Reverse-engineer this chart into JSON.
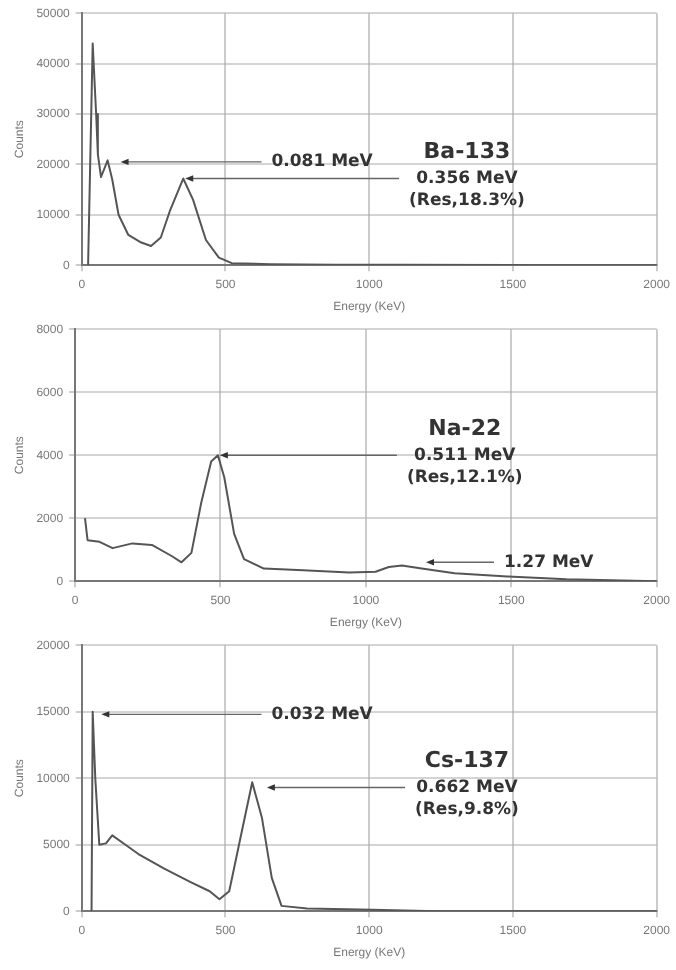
{
  "chart_data": [
    {
      "type": "line",
      "xlabel": "Energy (KeV)",
      "ylabel": "Counts",
      "marker": "none",
      "grid": true,
      "color": "#555555",
      "x": [
        22,
        38,
        50,
        56,
        67,
        90,
        106,
        128,
        162,
        207,
        241,
        275,
        308,
        353,
        387,
        432,
        477,
        522,
        657,
        882,
        1107,
        1557,
        2000
      ],
      "values": [
        0,
        44000,
        30000,
        22000,
        17500,
        20800,
        17000,
        10000,
        6000,
        4500,
        3800,
        5500,
        11000,
        17200,
        13000,
        5000,
        1500,
        400,
        200,
        100,
        100,
        0,
        0
      ],
      "xlim": [
        0,
        2000
      ],
      "xticks": [
        0,
        500,
        1000,
        1500,
        2000
      ],
      "ylim": [
        0,
        50000
      ],
      "yticks": [
        0,
        10000,
        20000,
        30000,
        40000,
        50000
      ],
      "annotations": [
        {
          "text": "0.081 MeV",
          "x": 128,
          "y": 20500
        },
        "Ba-133",
        {
          "text": "0.356 MeV\n(Res,18.3%)",
          "x": 353,
          "y": 17200
        }
      ]
    },
    {
      "type": "line",
      "xlabel": "Energy (KeV)",
      "ylabel": "Counts",
      "marker": "none",
      "grid": true,
      "color": "#555555",
      "x": [
        34,
        43,
        84,
        129,
        197,
        264,
        332,
        366,
        400,
        434,
        468,
        491,
        513,
        547,
        581,
        649,
        784,
        943,
        1033,
        1079,
        1124,
        1192,
        1305,
        1486,
        1690,
        2000
      ],
      "values": [
        2000,
        1300,
        1250,
        1050,
        1200,
        1150,
        800,
        600,
        900,
        2500,
        3800,
        4000,
        3300,
        1500,
        700,
        400,
        350,
        280,
        300,
        450,
        500,
        400,
        250,
        150,
        60,
        0
      ],
      "xlim": [
        0,
        2000
      ],
      "xticks": [
        0,
        500,
        1000,
        1500,
        2000
      ],
      "ylim": [
        0,
        8000
      ],
      "yticks": [
        0,
        2000,
        4000,
        6000,
        8000
      ],
      "annotations": [
        "Na-22",
        {
          "text": "0.511 MeV\n(Res,12.1%)",
          "x": 491,
          "y": 4000
        },
        {
          "text": "1.27 MeV",
          "x": 1200,
          "y": 600
        }
      ]
    },
    {
      "type": "line",
      "xlabel": "Energy (KeV)",
      "ylabel": "Counts",
      "marker": "none",
      "grid": true,
      "color": "#555555",
      "x": [
        34,
        38,
        47,
        61,
        84,
        106,
        152,
        197,
        287,
        377,
        445,
        479,
        513,
        547,
        593,
        627,
        661,
        695,
        784,
        1011,
        1237,
        2000
      ],
      "values": [
        0,
        15000,
        10000,
        5000,
        5100,
        5700,
        5000,
        4300,
        3200,
        2200,
        1500,
        900,
        1500,
        5000,
        9700,
        7000,
        2500,
        400,
        200,
        100,
        0,
        0
      ],
      "xlim": [
        0,
        2000
      ],
      "xticks": [
        0,
        500,
        1000,
        1500,
        2000
      ],
      "ylim": [
        0,
        20000
      ],
      "yticks": [
        0,
        5000,
        10000,
        15000,
        20000
      ],
      "annotations": [
        {
          "text": "0.032 MeV",
          "x": 61,
          "y": 14800
        },
        "Cs-137",
        {
          "text": "0.662 MeV\n(Res,9.8%)",
          "x": 637,
          "y": 9300
        }
      ]
    }
  ]
}
